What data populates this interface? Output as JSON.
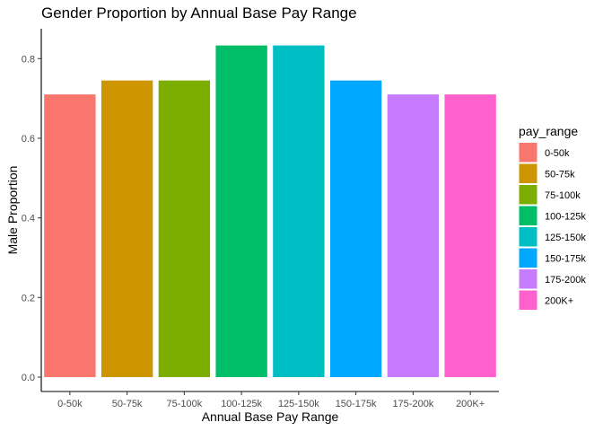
{
  "chart_data": {
    "type": "bar",
    "title": "Gender Proportion by Annual Base Pay Range",
    "xlabel": "Annual Base Pay Range",
    "ylabel": "Male Proportion",
    "categories": [
      "0-50k",
      "50-75k",
      "75-100k",
      "100-125k",
      "125-150k",
      "150-175k",
      "175-200k",
      "200K+"
    ],
    "values": [
      0.71,
      0.745,
      0.745,
      0.833,
      0.833,
      0.745,
      0.71,
      0.71
    ],
    "ylim": [
      0,
      0.875
    ],
    "yticks": [
      "0.0",
      "0.2",
      "0.4",
      "0.6",
      "0.8"
    ],
    "grid": false,
    "legend": {
      "title": "pay_range",
      "position": "right",
      "entries": [
        "0-50k",
        "50-75k",
        "75-100k",
        "100-125k",
        "125-150k",
        "150-175k",
        "175-200k",
        "200K+"
      ]
    },
    "colors": [
      "#F8766D",
      "#CD9600",
      "#7CAE00",
      "#00BE67",
      "#00BFC4",
      "#00A9FF",
      "#C77CFF",
      "#FF61CC"
    ]
  }
}
